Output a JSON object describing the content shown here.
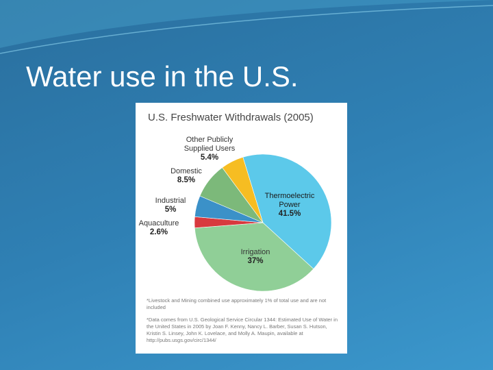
{
  "slide_title": "Water use in the U.S.",
  "chart_data": {
    "type": "pie",
    "title": "U.S. Freshwater Withdrawals (2005)",
    "categories": [
      "Thermoelectric Power",
      "Irrigation",
      "Aquaculture",
      "Industrial",
      "Domestic",
      "Other Publicly Supplied Users"
    ],
    "values": [
      41.5,
      37,
      2.6,
      5,
      8.5,
      5.4
    ],
    "value_labels": [
      "41.5%",
      "37%",
      "2.6%",
      "5%",
      "8.5%",
      "5.4%"
    ],
    "colors": [
      "#5cc9ea",
      "#90cf97",
      "#d8393e",
      "#3b91c8",
      "#7cb97a",
      "#f6bd22"
    ],
    "notes": [
      "*Livestock and Mining combined use approximately 1% of total use and are not included",
      "*Data comes from U.S. Geological Service Circular 1344: Estimated Use of Water in the United States in 2005 by Joan F. Kenny, Nancy L. Barber, Susan S. Hutson, Kristin S. Linsey, John K. Lovelace, and Molly A. Maupin, available at http://pubs.usgs.gov/circ/1344/"
    ]
  }
}
